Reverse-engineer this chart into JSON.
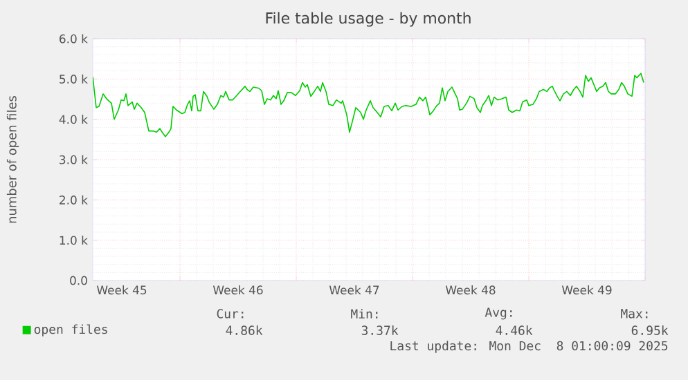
{
  "chart_data": {
    "type": "line",
    "title": "File table usage - by month",
    "ylabel": "number of open files",
    "x": [
      "2025-11-04T18:00",
      "2025-11-04T23:00",
      "2025-11-05T03:00",
      "2025-11-05T09:00",
      "2025-11-05T14:00",
      "2025-11-05T17:00",
      "2025-11-05T21:00",
      "2025-11-06T01:00",
      "2025-11-06T07:00",
      "2025-11-06T11:00",
      "2025-11-06T15:00",
      "2025-11-06T18:00",
      "2025-11-06T21:00",
      "2025-11-07T03:00",
      "2025-11-07T06:00",
      "2025-11-07T10:00",
      "2025-11-07T16:00",
      "2025-11-07T21:00",
      "2025-11-08T03:00",
      "2025-11-08T09:00",
      "2025-11-08T14:00",
      "2025-11-08T19:00",
      "2025-11-08T23:00",
      "2025-11-09T03:00",
      "2025-11-09T08:00",
      "2025-11-09T11:00",
      "2025-11-09T14:00",
      "2025-11-09T19:00",
      "2025-11-10T03:00",
      "2025-11-10T07:00",
      "2025-11-10T11:00",
      "2025-11-10T14:00",
      "2025-11-10T17:00",
      "2025-11-10T19:00",
      "2025-11-10T22:00",
      "2025-11-11T02:00",
      "2025-11-11T06:00",
      "2025-11-11T10:00",
      "2025-11-11T15:00",
      "2025-11-11T18:00",
      "2025-11-12T01:00",
      "2025-11-12T06:00",
      "2025-11-12T11:00",
      "2025-11-12T15:00",
      "2025-11-12T18:00",
      "2025-11-12T23:00",
      "2025-11-13T04:00",
      "2025-11-13T10:00",
      "2025-11-13T15:00",
      "2025-11-13T22:00",
      "2025-11-14T01:00",
      "2025-11-14T05:00",
      "2025-11-14T10:00",
      "2025-11-14T18:00",
      "2025-11-14T22:00",
      "2025-11-15T02:00",
      "2025-11-15T06:00",
      "2025-11-15T11:00",
      "2025-11-15T15:00",
      "2025-11-15T19:00",
      "2025-11-15T22:00",
      "2025-11-16T02:00",
      "2025-11-16T06:00",
      "2025-11-16T11:00",
      "2025-11-16T17:00",
      "2025-11-16T23:00",
      "2025-11-17T05:00",
      "2025-11-17T09:00",
      "2025-11-17T13:00",
      "2025-11-17T16:00",
      "2025-11-17T21:00",
      "2025-11-18T02:00",
      "2025-11-18T07:00",
      "2025-11-18T11:00",
      "2025-11-18T14:00",
      "2025-11-18T19:00",
      "2025-11-18T23:00",
      "2025-11-19T05:00",
      "2025-11-19T10:00",
      "2025-11-19T17:00",
      "2025-11-19T19:00",
      "2025-11-20T01:00",
      "2025-11-20T05:00",
      "2025-11-20T09:00",
      "2025-11-20T14:00",
      "2025-11-20T21:00",
      "2025-11-21T01:00",
      "2025-11-21T05:00",
      "2025-11-21T11:00",
      "2025-11-21T15:00",
      "2025-11-21T21:00",
      "2025-11-22T02:00",
      "2025-11-22T07:00",
      "2025-11-22T13:00",
      "2025-11-22T18:00",
      "2025-11-22T23:00",
      "2025-11-23T03:00",
      "2025-11-23T09:00",
      "2025-11-23T14:00",
      "2025-11-23T22:00",
      "2025-11-24T05:00",
      "2025-11-24T10:00",
      "2025-11-24T15:00",
      "2025-11-24T19:00",
      "2025-11-25T01:00",
      "2025-11-25T06:00",
      "2025-11-25T11:00",
      "2025-11-25T15:00",
      "2025-11-25T19:00",
      "2025-11-25T23:00",
      "2025-11-26T03:00",
      "2025-11-26T09:00",
      "2025-11-26T12:00",
      "2025-11-26T17:00",
      "2025-11-26T20:00",
      "2025-11-27T00:00",
      "2025-11-27T06:00",
      "2025-11-27T11:00",
      "2025-11-27T17:00",
      "2025-11-27T21:00",
      "2025-11-28T02:00",
      "2025-11-28T05:00",
      "2025-11-28T10:00",
      "2025-11-28T14:00",
      "2025-11-28T18:00",
      "2025-11-28T22:00",
      "2025-11-29T03:00",
      "2025-11-29T09:00",
      "2025-11-29T15:00",
      "2025-11-29T19:00",
      "2025-11-30T00:00",
      "2025-11-30T06:00",
      "2025-11-30T11:00",
      "2025-11-30T15:00",
      "2025-11-30T21:00",
      "2025-12-01T00:00",
      "2025-12-01T06:00",
      "2025-12-01T11:00",
      "2025-12-01T15:00",
      "2025-12-01T21:00",
      "2025-12-02T02:00",
      "2025-12-02T06:00",
      "2025-12-02T10:00",
      "2025-12-02T12:00",
      "2025-12-02T17:00",
      "2025-12-02T21:00",
      "2025-12-03T02:00",
      "2025-12-03T07:00",
      "2025-12-03T12:00",
      "2025-12-03T17:00",
      "2025-12-03T21:00",
      "2025-12-04T02:00",
      "2025-12-04T06:00",
      "2025-12-04T10:00",
      "2025-12-04T14:00",
      "2025-12-04T18:00",
      "2025-12-04T22:00",
      "2025-12-05T02:00",
      "2025-12-05T06:00",
      "2025-12-05T11:00",
      "2025-12-05T15:00",
      "2025-12-05T19:00",
      "2025-12-05T23:00",
      "2025-12-06T05:00",
      "2025-12-06T10:00",
      "2025-12-06T14:00",
      "2025-12-06T18:00",
      "2025-12-06T23:00",
      "2025-12-07T05:00",
      "2025-12-07T09:00",
      "2025-12-07T12:00",
      "2025-12-07T18:00",
      "2025-12-07T22:00"
    ],
    "series": [
      {
        "name": "open files",
        "color": "#00cc00",
        "values": [
          5050,
          4290,
          4320,
          4630,
          4510,
          4460,
          4400,
          4000,
          4230,
          4480,
          4460,
          4630,
          4340,
          4430,
          4250,
          4400,
          4290,
          4170,
          3710,
          3710,
          3680,
          3770,
          3660,
          3570,
          3680,
          3770,
          4320,
          4230,
          4140,
          4170,
          4370,
          4460,
          4210,
          4570,
          4610,
          4210,
          4210,
          4690,
          4570,
          4430,
          4250,
          4370,
          4590,
          4550,
          4690,
          4480,
          4480,
          4590,
          4690,
          4820,
          4740,
          4690,
          4800,
          4770,
          4710,
          4370,
          4510,
          4480,
          4590,
          4510,
          4710,
          4370,
          4460,
          4660,
          4660,
          4590,
          4710,
          4910,
          4800,
          4860,
          4570,
          4690,
          4820,
          4690,
          4910,
          4690,
          4370,
          4340,
          4480,
          4400,
          4460,
          4110,
          3680,
          3940,
          4290,
          4170,
          4000,
          4230,
          4460,
          4290,
          4170,
          4060,
          4320,
          4340,
          4210,
          4400,
          4230,
          4320,
          4340,
          4320,
          4370,
          4550,
          4460,
          4550,
          4110,
          4210,
          4340,
          4400,
          4780,
          4460,
          4690,
          4800,
          4690,
          4510,
          4230,
          4250,
          4400,
          4570,
          4510,
          4290,
          4170,
          4340,
          4460,
          4590,
          4340,
          4550,
          4480,
          4510,
          4550,
          4230,
          4170,
          4230,
          4210,
          4430,
          4480,
          4340,
          4370,
          4510,
          4690,
          4740,
          4690,
          4780,
          4820,
          4740,
          4570,
          4460,
          4630,
          4690,
          4590,
          4740,
          4820,
          4690,
          4550,
          5090,
          4940,
          5030,
          4860,
          4690,
          4780,
          4820,
          4910,
          4690,
          4630,
          4630,
          4740,
          4910,
          4820,
          4630,
          4570,
          5090,
          5030,
          5140,
          4910
        ]
      }
    ],
    "xlim": [
      "2025-11-04T18:00",
      "2025-12-08T00:00"
    ],
    "ylim": [
      0,
      6000
    ],
    "xticks": [
      {
        "value": "2025-11-06T12:00",
        "label": "Week 45"
      },
      {
        "value": "2025-11-10",
        "label": null
      },
      {
        "value": "2025-11-13T12:00",
        "label": "Week 46"
      },
      {
        "value": "2025-11-17",
        "label": null
      },
      {
        "value": "2025-11-20T12:00",
        "label": "Week 47"
      },
      {
        "value": "2025-11-24",
        "label": null
      },
      {
        "value": "2025-11-27T12:00",
        "label": "Week 48"
      },
      {
        "value": "2025-12-01",
        "label": null
      },
      {
        "value": "2025-12-04T12:00",
        "label": "Week 49"
      },
      {
        "value": "2025-12-08",
        "label": null
      }
    ],
    "yticks": [
      {
        "value": 0,
        "label": "0.0"
      },
      {
        "value": 1000,
        "label": "1.0 k"
      },
      {
        "value": 2000,
        "label": "2.0 k"
      },
      {
        "value": 3000,
        "label": "3.0 k"
      },
      {
        "value": 4000,
        "label": "4.0 k"
      },
      {
        "value": 5000,
        "label": "5.0 k"
      },
      {
        "value": 6000,
        "label": "6.0 k"
      }
    ],
    "grid": true,
    "legend": "bottom left",
    "annotations": [
      "Cur:",
      "4.86k",
      "Min:",
      "3.37k",
      "Avg:",
      "4.46k",
      "Max:",
      "6.95k",
      "Last update: Mon Dec  8 01:00:09 2025"
    ]
  }
}
